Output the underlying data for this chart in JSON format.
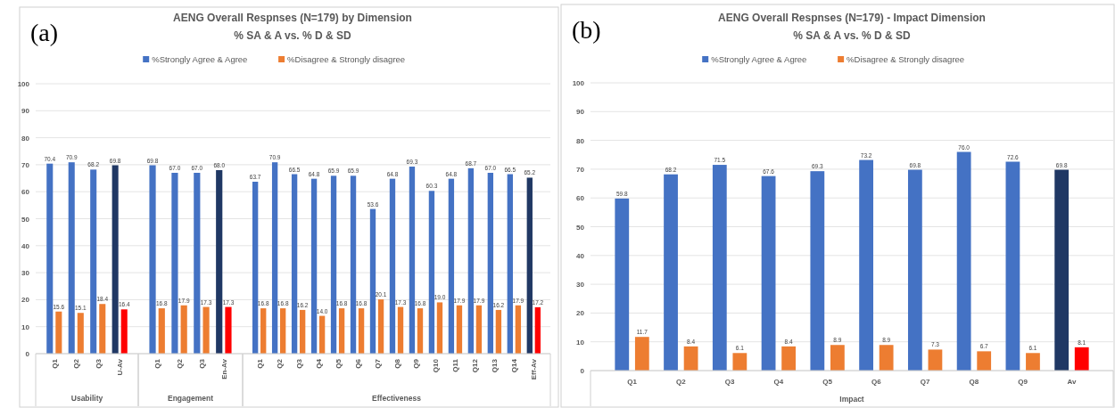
{
  "chart_data": [
    {
      "type": "bar",
      "xlabel": "Usability",
      "categories": [
        "Q1",
        "Q2",
        "Q3",
        "U-Av"
      ],
      "series": [
        {
          "name": "%Strongly Agree & Agree",
          "color": "#4472c4",
          "colors": [
            "#4472c4",
            "#4472c4",
            "#4472c4",
            "#203864"
          ],
          "values": [
            70.4,
            70.9,
            68.2,
            69.8
          ],
          "value_labels": [
            "70.4",
            "70.9",
            "68.2",
            "69.8"
          ]
        },
        {
          "name": "%Disagree & Strongly disagree",
          "color": "#ed7d31",
          "colors": [
            "#ed7d31",
            "#ed7d31",
            "#ed7d31",
            "#ff0000"
          ],
          "values": [
            15.6,
            15.1,
            18.4,
            16.4
          ],
          "value_labels": [
            "15.6",
            "15.1",
            "18.4",
            "16.4"
          ]
        }
      ],
      "ylim": [
        0,
        100
      ],
      "yticks": [
        0,
        10,
        20,
        30,
        40,
        50,
        60,
        70,
        80,
        90,
        100
      ],
      "grid": "y",
      "legend": "top",
      "annotations": [
        "(a)"
      ]
    },
    {
      "type": "bar",
      "xlabel": "Engagement",
      "categories": [
        "Q1",
        "Q2",
        "Q3",
        "En-Av"
      ],
      "series": [
        {
          "colors": [
            "#4472c4",
            "#4472c4",
            "#4472c4",
            "#203864"
          ],
          "values": [
            69.8,
            67.0,
            67.0,
            68.0
          ],
          "value_labels": [
            "69.8",
            "67.0",
            "67.0",
            "68.0"
          ]
        },
        {
          "colors": [
            "#ed7d31",
            "#ed7d31",
            "#ed7d31",
            "#ff0000"
          ],
          "values": [
            16.8,
            17.9,
            17.3,
            17.3
          ],
          "value_labels": [
            "16.8",
            "17.9",
            "17.3",
            "17.3"
          ]
        }
      ],
      "ylim": [
        0,
        100
      ],
      "yticks": [
        0,
        10,
        20,
        30,
        40,
        50,
        60,
        70,
        80,
        90,
        100
      ],
      "grid": "y",
      "tick_labels": "x"
    },
    {
      "type": "bar",
      "title": "AENG Overall Respnses (N=179) by Dimension",
      "subtitle": "% SA & A vs. % D & SD",
      "xlabel": "Effectiveness",
      "categories": [
        "Q1",
        "Q2",
        "Q3",
        "Q4",
        "Q5",
        "Q6",
        "Q7",
        "Q8",
        "Q9",
        "Q10",
        "Q11",
        "Q12",
        "Q13",
        "Q14",
        "Eff-Av"
      ],
      "series": [
        {
          "colors": [
            "#4472c4",
            "#4472c4",
            "#4472c4",
            "#4472c4",
            "#4472c4",
            "#4472c4",
            "#4472c4",
            "#4472c4",
            "#4472c4",
            "#4472c4",
            "#4472c4",
            "#4472c4",
            "#4472c4",
            "#4472c4",
            "#203864"
          ],
          "values": [
            63.7,
            70.9,
            66.5,
            64.8,
            65.9,
            65.9,
            53.6,
            64.8,
            69.3,
            60.3,
            64.8,
            68.7,
            67.0,
            66.5,
            65.2
          ],
          "value_labels": [
            "63.7",
            "70.9",
            "66.5",
            "64.8",
            "65.9",
            "65.9",
            "53.6",
            "64.8",
            "69.3",
            "60.3",
            "64.8",
            "68.7",
            "67.0",
            "66.5",
            "65.2"
          ]
        },
        {
          "colors": [
            "#ed7d31",
            "#ed7d31",
            "#ed7d31",
            "#ed7d31",
            "#ed7d31",
            "#ed7d31",
            "#ed7d31",
            "#ed7d31",
            "#ed7d31",
            "#ed7d31",
            "#ed7d31",
            "#ed7d31",
            "#ed7d31",
            "#ed7d31",
            "#ff0000"
          ],
          "values": [
            16.8,
            16.8,
            16.2,
            14.0,
            16.8,
            16.8,
            20.1,
            17.3,
            16.8,
            19.0,
            17.9,
            17.9,
            16.2,
            17.9,
            17.2
          ],
          "value_labels": [
            "16.8",
            "16.8",
            "16.2",
            "14.0",
            "16.8",
            "16.8",
            "20.1",
            "17.3",
            "16.8",
            "19.0",
            "17.9",
            "17.9",
            "16.2",
            "17.9",
            "17.2"
          ]
        }
      ],
      "ylim": [
        0,
        100
      ],
      "yticks": [
        0,
        10,
        20,
        30,
        40,
        50,
        60,
        70,
        80,
        90,
        100
      ],
      "grid": "y",
      "tick_labels": "x"
    },
    {
      "type": "bar",
      "title": "AENG Overall Respnses (N=179) - Impact Dimension",
      "subtitle": "% SA & A vs. % D & SD",
      "xlabel": "Impact",
      "categories": [
        "Q1",
        "Q2",
        "Q3",
        "Q4",
        "Q5",
        "Q6",
        "Q7",
        "Q8",
        "Q9",
        "Av"
      ],
      "series": [
        {
          "name": "%Strongly Agree & Agree",
          "color": "#4472c4",
          "colors": [
            "#4472c4",
            "#4472c4",
            "#4472c4",
            "#4472c4",
            "#4472c4",
            "#4472c4",
            "#4472c4",
            "#4472c4",
            "#4472c4",
            "#203864"
          ],
          "values": [
            59.8,
            68.2,
            71.5,
            67.6,
            69.3,
            73.2,
            69.8,
            76.0,
            72.6,
            69.8
          ],
          "value_labels": [
            "59.8",
            "68.2",
            "71.5",
            "67.6",
            "69.3",
            "73.2",
            "69.8",
            "76.0",
            "72.6",
            "69.8"
          ]
        },
        {
          "name": "%Disagree & Strongly disagree",
          "color": "#ed7d31",
          "colors": [
            "#ed7d31",
            "#ed7d31",
            "#ed7d31",
            "#ed7d31",
            "#ed7d31",
            "#ed7d31",
            "#ed7d31",
            "#ed7d31",
            "#ed7d31",
            "#ff0000"
          ],
          "values": [
            11.7,
            8.4,
            6.1,
            8.4,
            8.9,
            8.9,
            7.3,
            6.7,
            6.1,
            8.1
          ],
          "value_labels": [
            "11.7",
            "8.4",
            "6.1",
            "8.4",
            "8.9",
            "8.9",
            "7.3",
            "6.7",
            "6.1",
            "8.1"
          ]
        }
      ],
      "ylim": [
        0,
        100
      ],
      "yticks": [
        0,
        10,
        20,
        30,
        40,
        50,
        60,
        70,
        80,
        90,
        100
      ],
      "grid": "y",
      "legend": "top",
      "annotations": [
        "(b)"
      ]
    }
  ]
}
